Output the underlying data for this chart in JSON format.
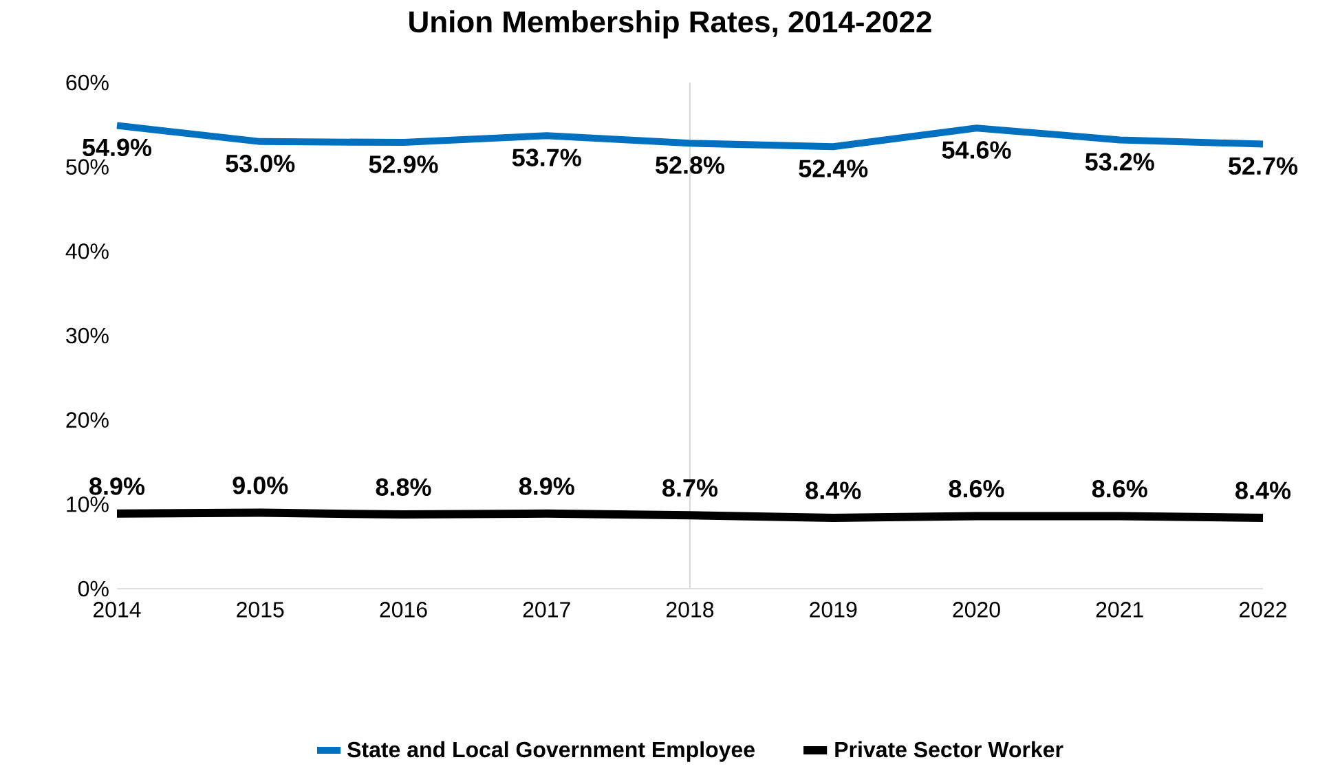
{
  "chart_data": {
    "type": "line",
    "title": "Union Membership Rates, 2014-2022",
    "categories": [
      "2014",
      "2015",
      "2016",
      "2017",
      "2018",
      "2019",
      "2020",
      "2021",
      "2022"
    ],
    "series": [
      {
        "name": "State and Local Government Employee",
        "color": "#0070c0",
        "values": [
          54.9,
          53.0,
          52.9,
          53.7,
          52.8,
          52.4,
          54.6,
          53.2,
          52.7
        ],
        "value_labels": [
          "54.9%",
          "53.0%",
          "52.9%",
          "53.7%",
          "52.8%",
          "52.4%",
          "54.6%",
          "53.2%",
          "52.7%"
        ]
      },
      {
        "name": "Private Sector Worker",
        "color": "#000000",
        "values": [
          8.9,
          9.0,
          8.8,
          8.9,
          8.7,
          8.4,
          8.6,
          8.6,
          8.4
        ],
        "value_labels": [
          "8.9%",
          "9.0%",
          "8.8%",
          "8.9%",
          "8.7%",
          "8.4%",
          "8.6%",
          "8.6%",
          "8.4%"
        ]
      }
    ],
    "ylim": [
      0,
      60
    ],
    "yticks": [
      {
        "value": 0,
        "label": "0%"
      },
      {
        "value": 10,
        "label": "10%"
      },
      {
        "value": 20,
        "label": "20%"
      },
      {
        "value": 30,
        "label": "30%"
      },
      {
        "value": 40,
        "label": "40%"
      },
      {
        "value": 50,
        "label": "50%"
      },
      {
        "value": 60,
        "label": "60%"
      }
    ],
    "ref_lines": [
      {
        "axis": "x",
        "value": "2018",
        "color": "#d9d9d9"
      }
    ],
    "grid": false,
    "legend": "bottom",
    "marker": "none",
    "line_style": "solid"
  }
}
